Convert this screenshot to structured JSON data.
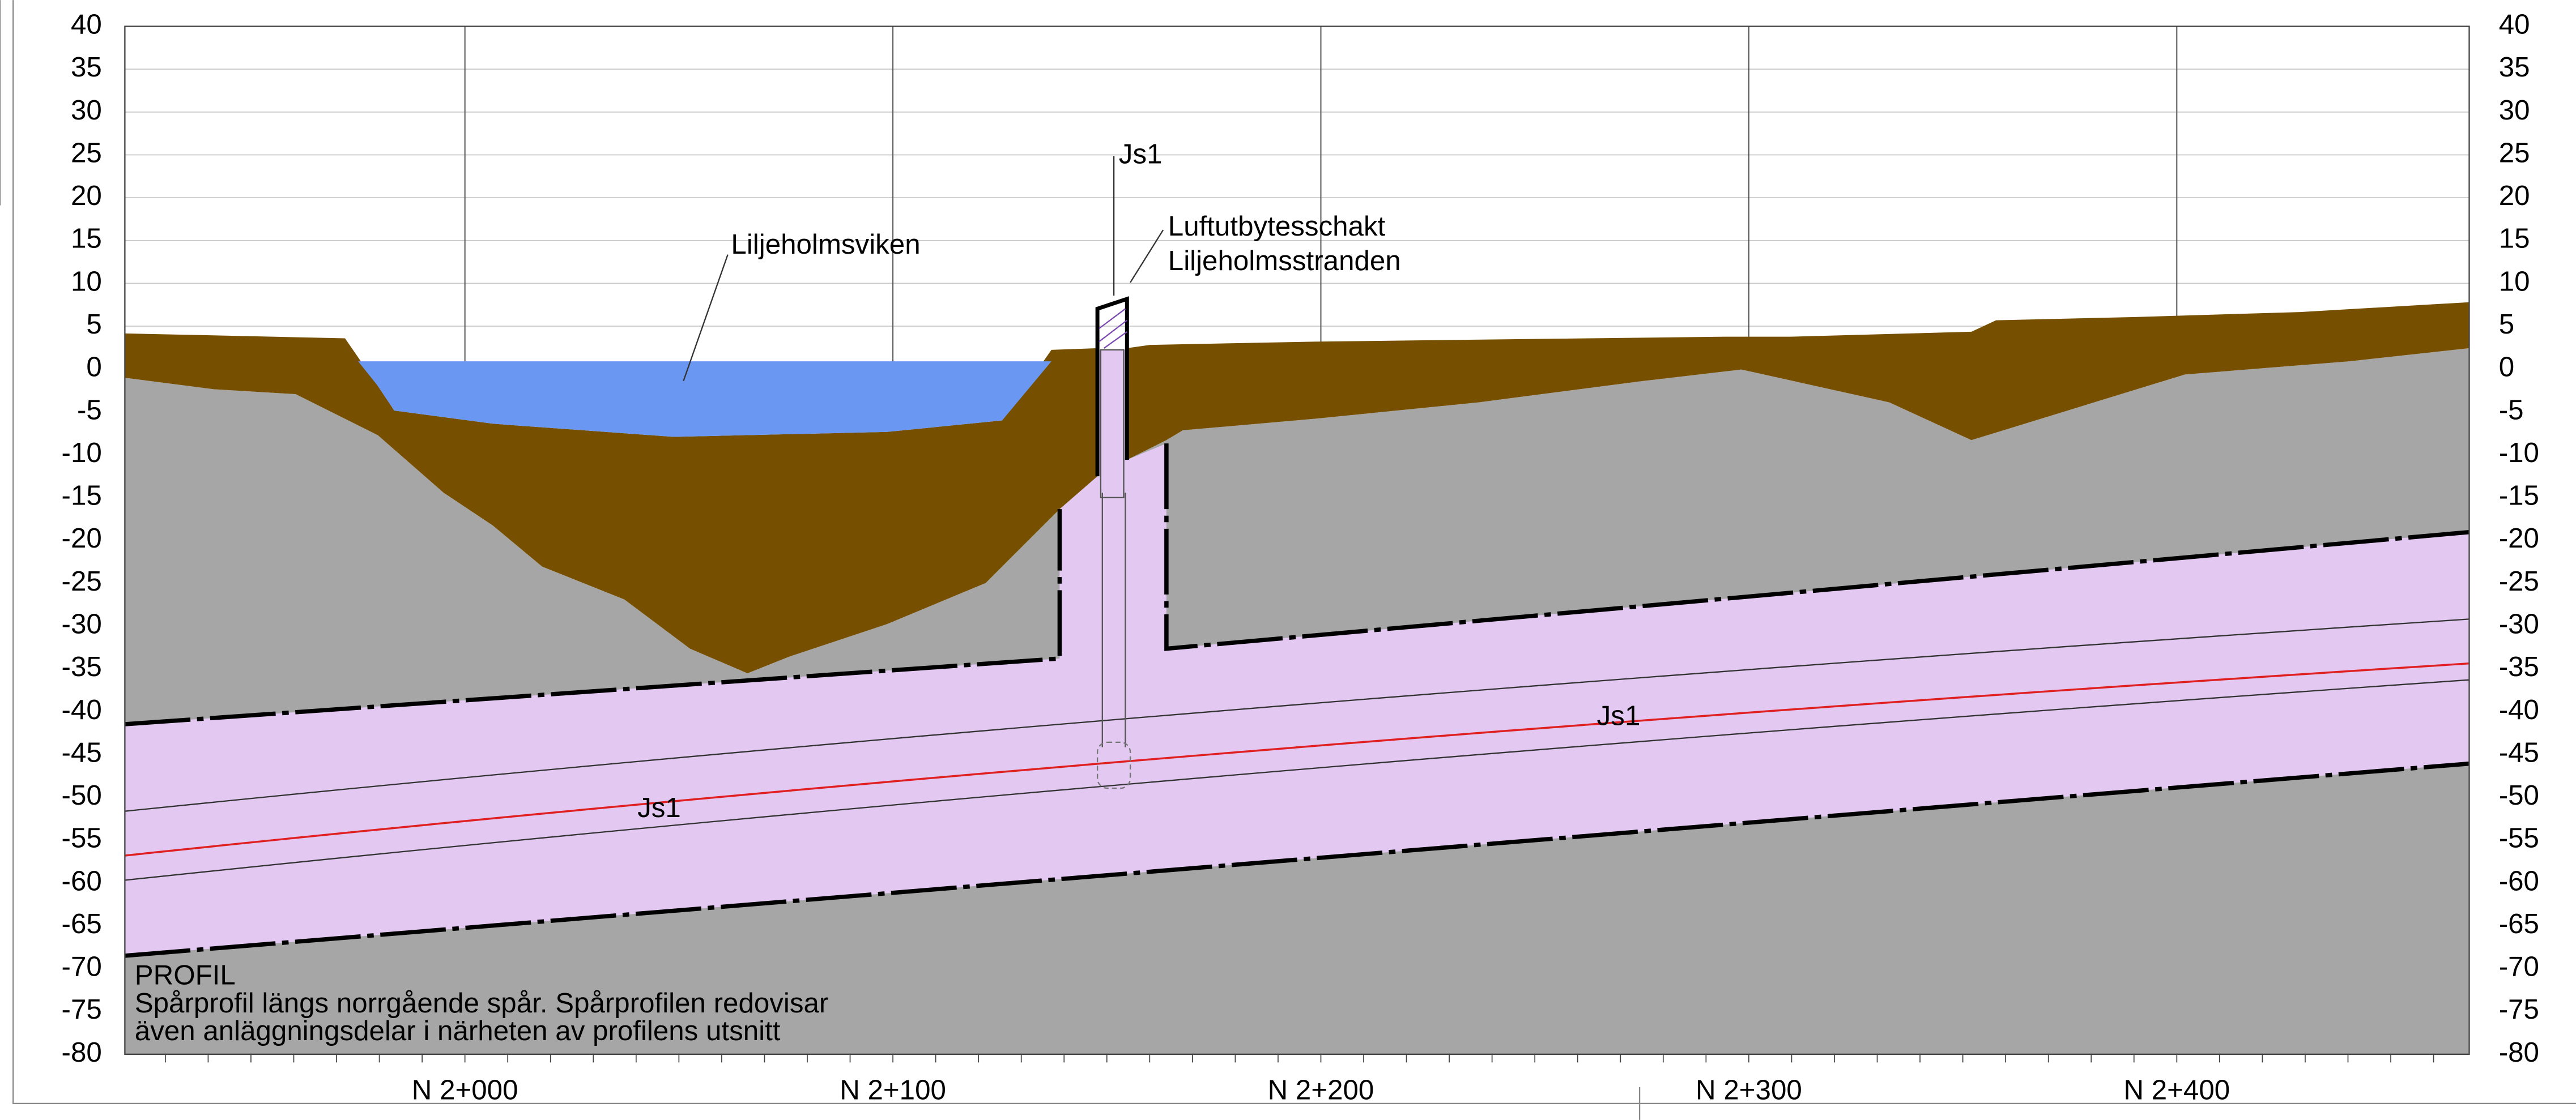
{
  "axis": {
    "yticks": [
      40,
      35,
      30,
      25,
      20,
      15,
      10,
      5,
      0,
      -5,
      -10,
      -15,
      -20,
      -25,
      -30,
      -35,
      -40,
      -45,
      -50,
      -55,
      -60,
      -65,
      -70,
      -75,
      -80
    ],
    "xlabels": [
      "N 2+000",
      "N 2+100",
      "N 2+200",
      "N 2+300",
      "N 2+400"
    ]
  },
  "annotations": {
    "water": "Liljeholmsviken",
    "shaft_label": "Js1",
    "shaft_name_1": "Luftutbytesschakt",
    "shaft_name_2": "Liljeholmsstranden",
    "tunnel_label_right": "Js1",
    "tunnel_label_left": "Js1"
  },
  "profile": {
    "title": "PROFIL",
    "line_1": "Spårprofil längs norrgående spår. Spårprofilen redovisar",
    "line_2": "även anläggningsdelar i närheten av profilens utsnitt"
  }
}
